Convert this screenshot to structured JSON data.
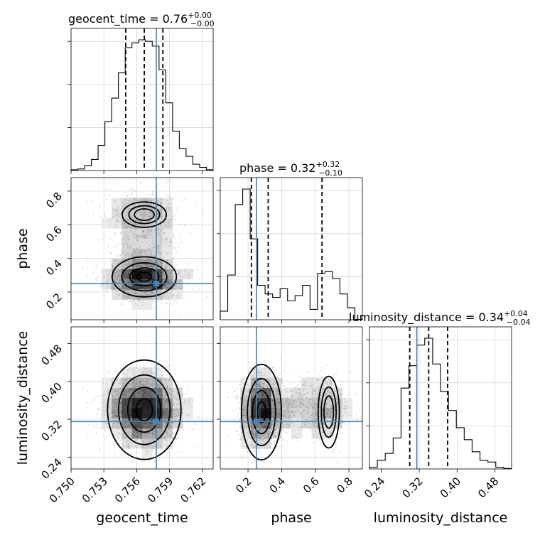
{
  "chart_data": {
    "type": "corner",
    "parameters": [
      "geocent_time",
      "phase",
      "luminosity_distance"
    ],
    "axis_labels": {
      "geocent_time": "geocent_time",
      "phase": "phase",
      "luminosity_distance": "luminosity_distance"
    },
    "titles": {
      "geocent_time": {
        "prefix": "geocent_time = ",
        "median": "0.76",
        "plus": "+0.00",
        "minus": "−0.00"
      },
      "phase": {
        "prefix": "phase = ",
        "median": "0.32",
        "plus": "+0.32",
        "minus": "−0.10"
      },
      "luminosity_distance": {
        "prefix": "luminosity_distance = ",
        "median": "0.34",
        "plus": "+0.04",
        "minus": "−0.04"
      }
    },
    "ranges": {
      "geocent_time": [
        0.75,
        0.763
      ],
      "phase": [
        0.035,
        0.88
      ],
      "luminosity_distance": [
        0.215,
        0.515
      ]
    },
    "ticks": {
      "geocent_time": [
        "0.750",
        "0.753",
        "0.756",
        "0.759",
        "0.762"
      ],
      "phase": [
        "0.2",
        "0.4",
        "0.6",
        "0.8"
      ],
      "luminosity_distance": [
        "0.24",
        "0.32",
        "0.40",
        "0.48"
      ]
    },
    "injected": {
      "geocent_time": 0.7578,
      "phase": 0.25,
      "luminosity_distance": 0.315
    },
    "quantiles": {
      "geocent_time": [
        0.755,
        0.7567,
        0.7584
      ],
      "phase": [
        0.22,
        0.32,
        0.64
      ],
      "luminosity_distance": [
        0.3,
        0.34,
        0.38
      ]
    },
    "histograms": {
      "geocent_time": [
        0.5,
        1,
        3,
        7,
        16,
        31,
        46,
        62,
        78,
        81,
        83,
        82,
        79,
        64,
        43,
        25,
        14,
        9,
        4,
        2,
        0.5
      ],
      "phase": [
        5,
        26,
        67,
        76,
        47,
        20,
        15,
        13,
        18,
        11,
        14,
        20,
        6,
        27,
        28,
        24,
        15,
        7,
        0.2
      ],
      "luminosity_distance": [
        1,
        5,
        9,
        18,
        47,
        60,
        72,
        76,
        61,
        45,
        34,
        24,
        17,
        10,
        5,
        4,
        1,
        0.3
      ]
    },
    "grid": true,
    "show_data_points": true
  }
}
